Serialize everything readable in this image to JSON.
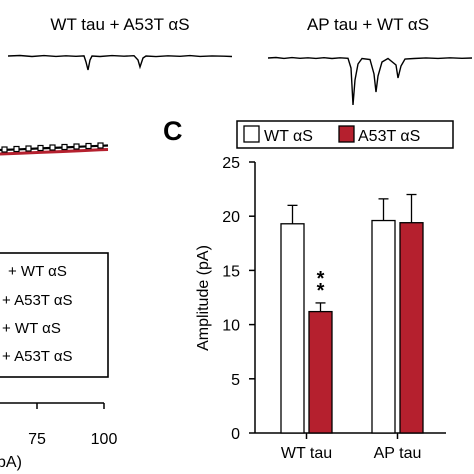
{
  "traces": {
    "left_label": "WT tau + A53T αS",
    "right_label": "AP tau + WT αS"
  },
  "left_panel": {
    "legend_items": [
      "+ WT αS",
      "+ A53T αS",
      "+ WT αS",
      "+ A53T αS"
    ],
    "x_ticks": [
      "75",
      "100"
    ],
    "x_label_fragment": "pA)"
  },
  "colors": {
    "wt": "#ffffff",
    "a53t": "#b5202e",
    "ink": "#000000"
  },
  "chart_data": {
    "type": "bar",
    "panel_label": "C",
    "categories": [
      "WT tau",
      "AP tau"
    ],
    "series": [
      {
        "name": "WT αS",
        "values": [
          19.3,
          19.6
        ],
        "errors": [
          1.7,
          2.0
        ]
      },
      {
        "name": "A53T αS",
        "values": [
          11.2,
          19.4
        ],
        "errors": [
          0.8,
          2.6
        ]
      }
    ],
    "ylabel": "Amplitude (pA)",
    "ylim": [
      0,
      25
    ],
    "yticks": [
      "0",
      "5",
      "10",
      "15",
      "20",
      "25"
    ],
    "significance": [
      {
        "category": "WT tau",
        "series": "A53T αS",
        "label": "**"
      }
    ],
    "legend": "top"
  }
}
